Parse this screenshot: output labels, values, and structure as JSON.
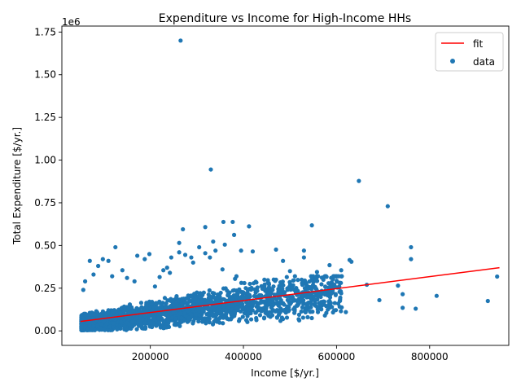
{
  "chart_data": {
    "type": "scatter",
    "title": "Expenditure vs Income for High-Income HHs",
    "xlabel": "Income [$/yr.]",
    "ylabel": "Total Expenditure [$/yr.]",
    "y_offset_label": "1e6",
    "xlim": [
      10000,
      970000
    ],
    "ylim": [
      -85000,
      1785000
    ],
    "xticks": [
      {
        "value": 200000,
        "label": "200000"
      },
      {
        "value": 400000,
        "label": "400000"
      },
      {
        "value": 600000,
        "label": "600000"
      },
      {
        "value": 800000,
        "label": "800000"
      }
    ],
    "yticks": [
      {
        "value": 0,
        "label": "0.00"
      },
      {
        "value": 250000,
        "label": "0.25"
      },
      {
        "value": 500000,
        "label": "0.50"
      },
      {
        "value": 750000,
        "label": "0.75"
      },
      {
        "value": 1000000,
        "label": "1.00"
      },
      {
        "value": 1250000,
        "label": "1.25"
      },
      {
        "value": 1500000,
        "label": "1.50"
      },
      {
        "value": 1750000,
        "label": "1.75"
      }
    ],
    "grid": false,
    "legend_position": "top-right",
    "series": [
      {
        "name": "fit",
        "kind": "line",
        "color": "#ff0000",
        "x": [
          50000,
          950000
        ],
        "y": [
          55000,
          370000
        ]
      },
      {
        "name": "data",
        "kind": "scatter",
        "color": "#1f77b4",
        "points": [
          [
            265000,
            1700000
          ],
          [
            330000,
            945000
          ],
          [
            648000,
            878000
          ],
          [
            710000,
            730000
          ],
          [
            270000,
            595000
          ],
          [
            318000,
            608000
          ],
          [
            357000,
            638000
          ],
          [
            377000,
            638000
          ],
          [
            412000,
            612000
          ],
          [
            547000,
            618000
          ],
          [
            262000,
            515000
          ],
          [
            335000,
            523000
          ],
          [
            380000,
            562000
          ],
          [
            470000,
            476000
          ],
          [
            760000,
            490000
          ],
          [
            760000,
            420000
          ],
          [
            945000,
            318000
          ],
          [
            925000,
            175000
          ],
          [
            815000,
            205000
          ],
          [
            770000,
            130000
          ],
          [
            742000,
            215000
          ],
          [
            742000,
            135000
          ],
          [
            732000,
            265000
          ],
          [
            692000,
            180000
          ],
          [
            665000,
            270000
          ],
          [
            632000,
            405000
          ],
          [
            628000,
            415000
          ],
          [
            610000,
            355000
          ],
          [
            608000,
            195000
          ],
          [
            595000,
            270000
          ],
          [
            585000,
            385000
          ],
          [
            585000,
            175000
          ],
          [
            570000,
            310000
          ],
          [
            558000,
            345000
          ],
          [
            548000,
            225000
          ],
          [
            530000,
            470000
          ],
          [
            530000,
            430000
          ],
          [
            525000,
            300000
          ],
          [
            515000,
            210000
          ],
          [
            500000,
            350000
          ],
          [
            485000,
            410000
          ],
          [
            470000,
            300000
          ],
          [
            455000,
            255000
          ],
          [
            445000,
            300000
          ],
          [
            420000,
            465000
          ],
          [
            395000,
            470000
          ],
          [
            382000,
            305000
          ],
          [
            360000,
            505000
          ],
          [
            340000,
            470000
          ],
          [
            328000,
            430000
          ],
          [
            318000,
            455000
          ],
          [
            305000,
            490000
          ],
          [
            292000,
            400000
          ],
          [
            288000,
            430000
          ],
          [
            275000,
            445000
          ],
          [
            262000,
            460000
          ],
          [
            245000,
            430000
          ],
          [
            228000,
            355000
          ],
          [
            198000,
            450000
          ],
          [
            188000,
            420000
          ],
          [
            172000,
            440000
          ],
          [
            150000,
            310000
          ],
          [
            140000,
            355000
          ],
          [
            125000,
            490000
          ],
          [
            118000,
            320000
          ],
          [
            110000,
            410000
          ],
          [
            98000,
            420000
          ],
          [
            88000,
            380000
          ],
          [
            70000,
            410000
          ],
          [
            78000,
            330000
          ],
          [
            60000,
            290000
          ],
          [
            56000,
            240000
          ],
          [
            220000,
            315000
          ],
          [
            210000,
            260000
          ],
          [
            385000,
            320000
          ],
          [
            402000,
            280000
          ],
          [
            560000,
            110000
          ],
          [
            590000,
            140000
          ],
          [
            515000,
            150000
          ],
          [
            480000,
            120000
          ],
          [
            460000,
            110000
          ],
          [
            440000,
            130000
          ],
          [
            505000,
            250000
          ],
          [
            545000,
            160000
          ],
          [
            610000,
            220000
          ],
          [
            620000,
            110000
          ],
          [
            575000,
            90000
          ],
          [
            595000,
            120000
          ],
          [
            495000,
            180000
          ],
          [
            538000,
            80000
          ],
          [
            455000,
            160000
          ],
          [
            430000,
            200000
          ],
          [
            355000,
            360000
          ],
          [
            242000,
            340000
          ],
          [
            236000,
            370000
          ],
          [
            166000,
            290000
          ]
        ]
      }
    ]
  }
}
